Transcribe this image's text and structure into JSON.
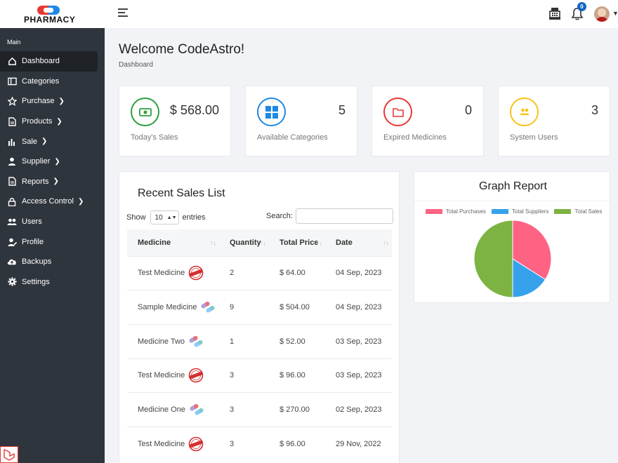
{
  "header": {
    "brand": "PHARMACY",
    "notification_count": "0",
    "icons": [
      "hamburger-icon",
      "cash-register-icon",
      "bell-icon",
      "avatar"
    ]
  },
  "sidebar": {
    "section_label": "Main",
    "items": [
      {
        "label": "Dashboard",
        "icon": "home-icon",
        "active": true,
        "has_submenu": false
      },
      {
        "label": "Categories",
        "icon": "columns-icon",
        "active": false,
        "has_submenu": false
      },
      {
        "label": "Purchase",
        "icon": "star-icon",
        "active": false,
        "has_submenu": true
      },
      {
        "label": "Products",
        "icon": "document-icon",
        "active": false,
        "has_submenu": true
      },
      {
        "label": "Sale",
        "icon": "bar-chart-icon",
        "active": false,
        "has_submenu": true
      },
      {
        "label": "Supplier",
        "icon": "user-icon",
        "active": false,
        "has_submenu": true
      },
      {
        "label": "Reports",
        "icon": "document-icon",
        "active": false,
        "has_submenu": true
      },
      {
        "label": "Access Control",
        "icon": "lock-icon",
        "active": false,
        "has_submenu": true
      },
      {
        "label": "Users",
        "icon": "users-icon",
        "active": false,
        "has_submenu": false
      },
      {
        "label": "Profile",
        "icon": "user-edit-icon",
        "active": false,
        "has_submenu": false
      },
      {
        "label": "Backups",
        "icon": "cloud-upload-icon",
        "active": false,
        "has_submenu": false
      },
      {
        "label": "Settings",
        "icon": "gear-icon",
        "active": false,
        "has_submenu": false
      }
    ]
  },
  "page": {
    "title": "Welcome CodeAstro!",
    "breadcrumb": "Dashboard"
  },
  "stats": [
    {
      "value": "$ 568.00",
      "label": "Today's Sales",
      "color": "#2e9e3e",
      "icon": "money-icon"
    },
    {
      "value": "5",
      "label": "Available Categories",
      "color": "#1e88e5",
      "icon": "grid-icon"
    },
    {
      "value": "0",
      "label": "Expired Medicines",
      "color": "#e53935",
      "icon": "folder-icon"
    },
    {
      "value": "3",
      "label": "System Users",
      "color": "#f9c21a",
      "icon": "users-icon"
    }
  ],
  "sales": {
    "title": "Recent Sales List",
    "show_label": "Show",
    "entries_value": "10",
    "entries_label": "entries",
    "search_label": "Search:",
    "columns": [
      "Medicine",
      "Quantity",
      "Total Price",
      "Date"
    ],
    "rows": [
      {
        "medicine": "Test Medicine",
        "image": "sample-stamp-icon",
        "quantity": "2",
        "price": "$ 64.00",
        "date": "04 Sep, 2023"
      },
      {
        "medicine": "Sample Medicine",
        "image": "pills-icon",
        "quantity": "9",
        "price": "$ 504.00",
        "date": "04 Sep, 2023"
      },
      {
        "medicine": "Medicine Two",
        "image": "pills-icon",
        "quantity": "1",
        "price": "$ 52.00",
        "date": "03 Sep, 2023"
      },
      {
        "medicine": "Test Medicine",
        "image": "sample-stamp-icon",
        "quantity": "3",
        "price": "$ 96.00",
        "date": "03 Sep, 2023"
      },
      {
        "medicine": "Medicine One",
        "image": "pills-icon",
        "quantity": "3",
        "price": "$ 270.00",
        "date": "02 Sep, 2023"
      },
      {
        "medicine": "Test Medicine",
        "image": "sample-stamp-icon",
        "quantity": "3",
        "price": "$ 96.00",
        "date": "29 Nov, 2022"
      }
    ]
  },
  "graph": {
    "title": "Graph Report",
    "chart_data": {
      "type": "pie",
      "series": [
        {
          "name": "Total Purchases",
          "value": 34,
          "color": "#ff6384"
        },
        {
          "name": "Total Suppliers",
          "value": 16,
          "color": "#36a2eb"
        },
        {
          "name": "Total Sales",
          "value": 50,
          "color": "#7cb342"
        }
      ]
    }
  }
}
